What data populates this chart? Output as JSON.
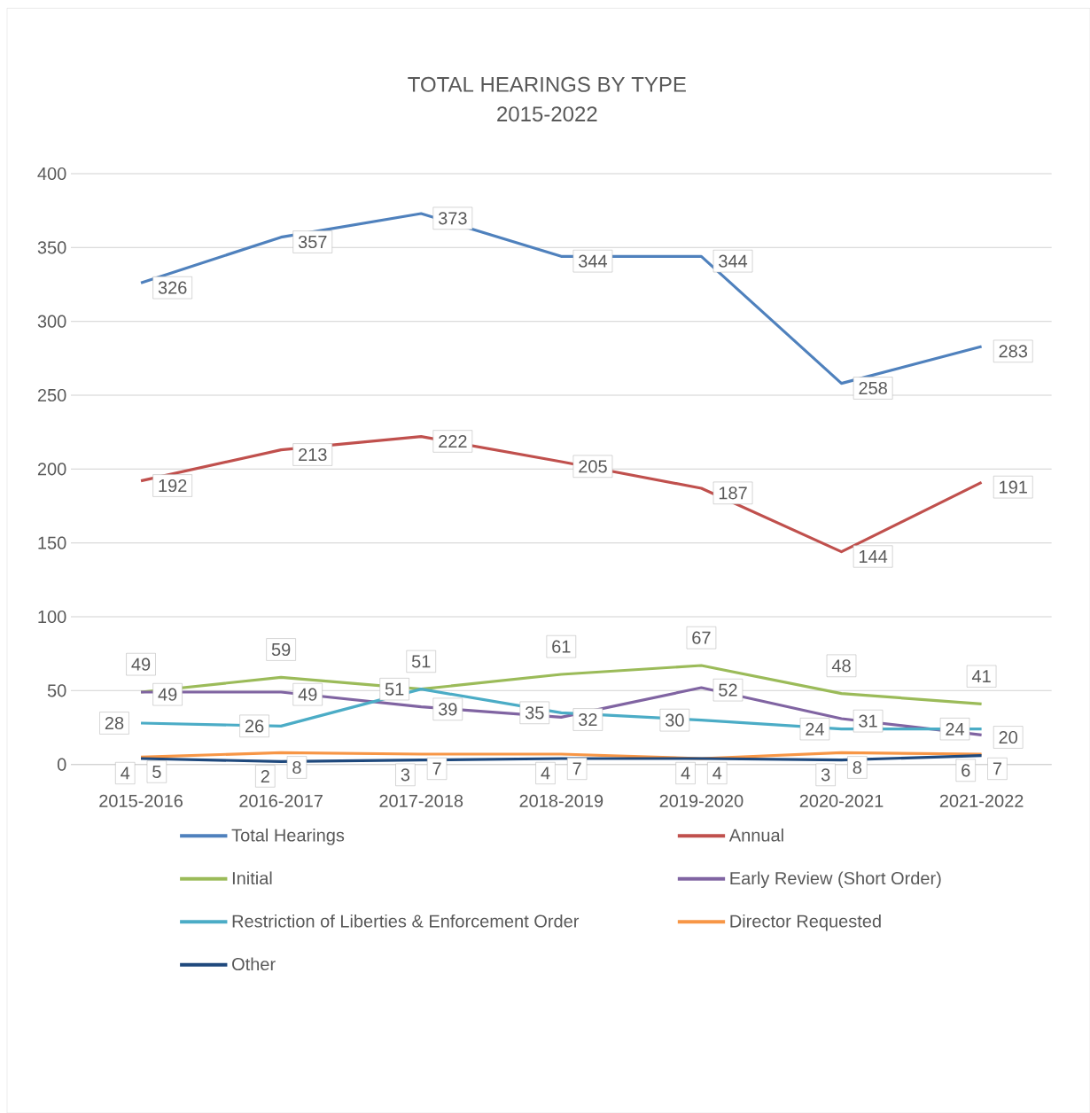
{
  "chart_data": {
    "type": "line",
    "title": "TOTAL HEARINGS BY TYPE",
    "subtitle": "2015-2022",
    "categories": [
      "2015-2016",
      "2016-2017",
      "2017-2018",
      "2018-2019",
      "2019-2020",
      "2020-2021",
      "2021-2022"
    ],
    "series": [
      {
        "name": "Total Hearings",
        "color": "#4f81bd",
        "values": [
          326,
          357,
          373,
          344,
          344,
          258,
          283
        ]
      },
      {
        "name": "Annual",
        "color": "#c0504d",
        "values": [
          192,
          213,
          222,
          205,
          187,
          144,
          191
        ]
      },
      {
        "name": "Initial",
        "color": "#9bbb59",
        "values": [
          49,
          59,
          51,
          61,
          67,
          48,
          41
        ]
      },
      {
        "name": "Early Review (Short Order)",
        "color": "#8064a2",
        "values": [
          49,
          49,
          39,
          32,
          52,
          31,
          20
        ]
      },
      {
        "name": "Restriction of Liberties & Enforcement Order",
        "color": "#4bacc6",
        "values": [
          28,
          26,
          51,
          35,
          30,
          24,
          24
        ]
      },
      {
        "name": "Director Requested",
        "color": "#f79646",
        "values": [
          5,
          8,
          7,
          7,
          4,
          8,
          7
        ]
      },
      {
        "name": "Other",
        "color": "#1f497d",
        "values": [
          4,
          2,
          3,
          4,
          4,
          3,
          6
        ]
      }
    ],
    "ylim": [
      0,
      400
    ],
    "yticks": [
      0,
      50,
      100,
      150,
      200,
      250,
      300,
      350,
      400
    ],
    "grid": "y",
    "legend": "bottom",
    "marker": "none",
    "line_style": "solid",
    "data_labels": true
  }
}
